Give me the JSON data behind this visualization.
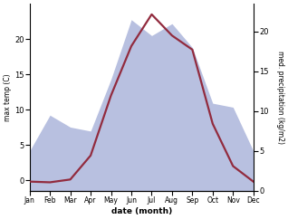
{
  "months": [
    "Jan",
    "Feb",
    "Mar",
    "Apr",
    "May",
    "Jun",
    "Jul",
    "Aug",
    "Sep",
    "Oct",
    "Nov",
    "Dec"
  ],
  "temp": [
    -0.2,
    -0.3,
    0.1,
    3.5,
    12.0,
    19.0,
    23.5,
    20.5,
    18.5,
    8.0,
    2.0,
    -0.2
  ],
  "precip": [
    5.0,
    9.5,
    8.0,
    7.5,
    14.0,
    21.5,
    19.5,
    21.0,
    18.0,
    11.0,
    10.5,
    5.0
  ],
  "temp_color": "#922b3e",
  "precip_fill_color": "#b8c0e0",
  "temp_ylim": [
    -1.5,
    25
  ],
  "precip_ylim": [
    0,
    23.5
  ],
  "ylabel_left": "max temp (C)",
  "ylabel_right": "med. precipitation (kg/m2)",
  "xlabel": "date (month)",
  "temp_yticks": [
    0,
    5,
    10,
    15,
    20
  ],
  "precip_yticks": [
    0,
    5,
    10,
    15,
    20
  ],
  "bg_color": "#ffffff",
  "line_width": 1.6
}
